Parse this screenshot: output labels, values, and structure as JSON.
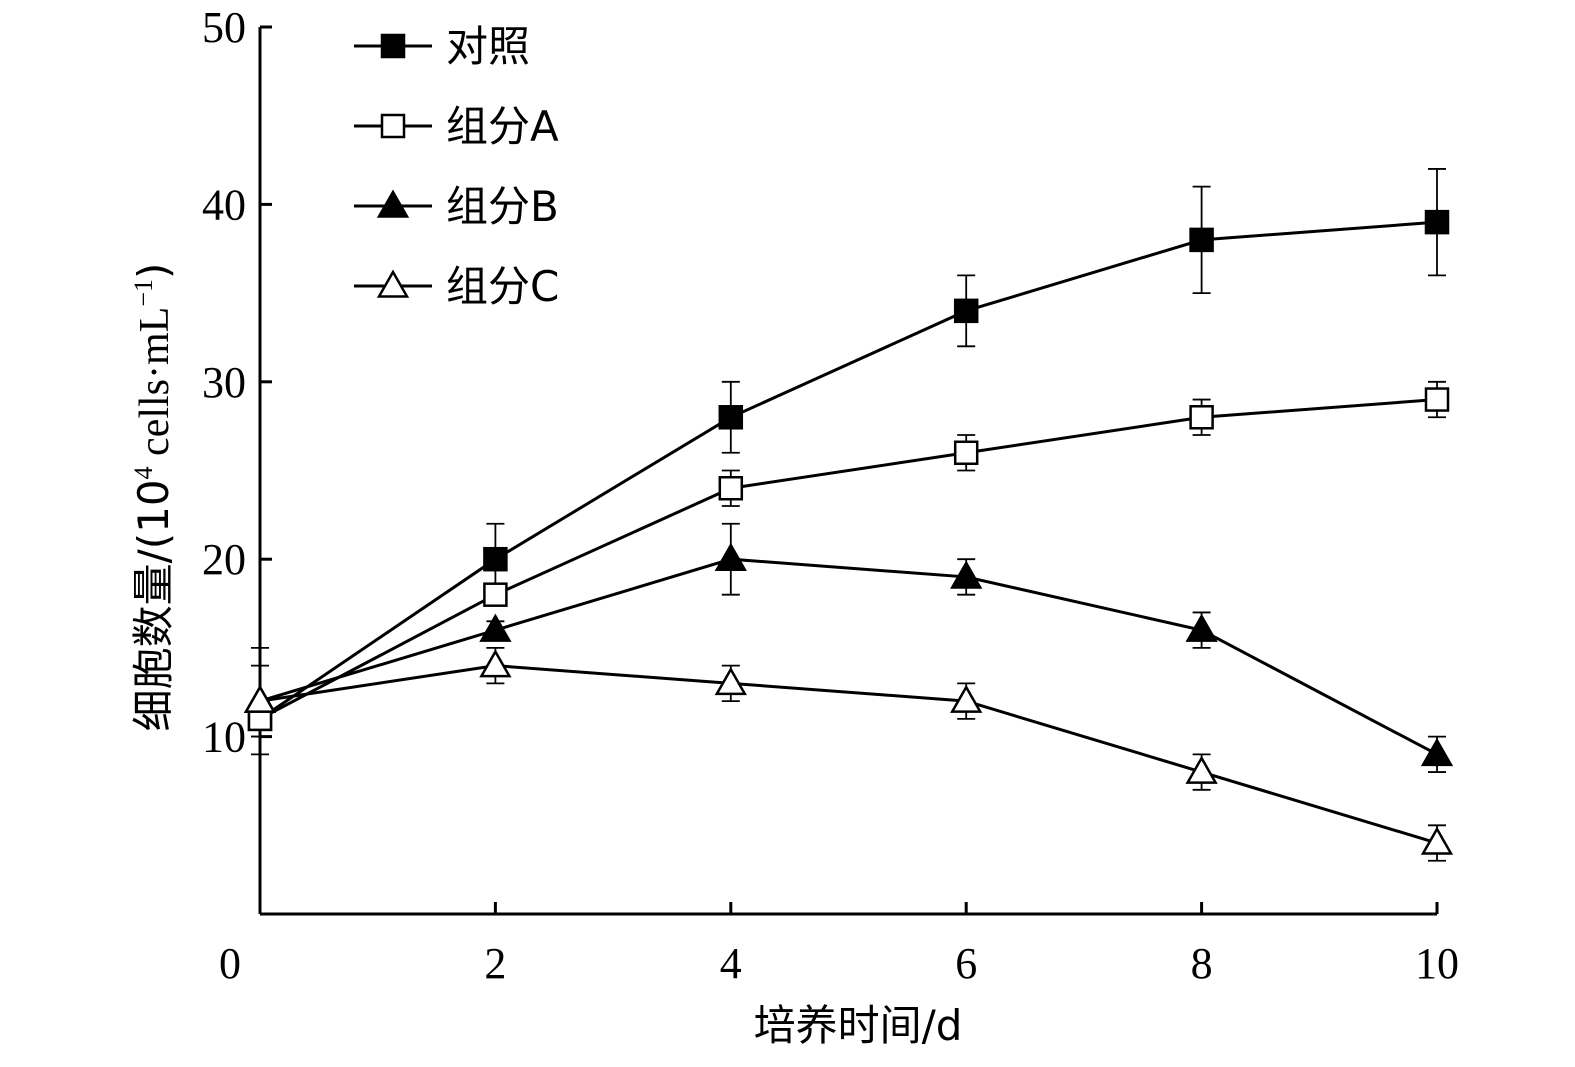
{
  "chart_data": {
    "type": "line",
    "title": "",
    "xlabel": "培养时间/d",
    "ylabel": {
      "prefix": "细胞数量/(10",
      "exponent": "4",
      "middle": " cells·mL",
      "unit_exponent": "−1",
      "suffix": ")"
    },
    "xlim": [
      0,
      10
    ],
    "ylim": [
      0,
      50
    ],
    "x_ticks": [
      0,
      2,
      4,
      6,
      8,
      10
    ],
    "y_ticks": [
      10,
      20,
      30,
      40,
      50
    ],
    "x": [
      0,
      2,
      4,
      6,
      8,
      10
    ],
    "grid": false,
    "legend": "top-left",
    "series": [
      {
        "name": "对照",
        "marker": "square-filled",
        "values": [
          11,
          20,
          28,
          34,
          38,
          39
        ],
        "errors": [
          1,
          2,
          2,
          2,
          3,
          3
        ]
      },
      {
        "name": "组分A",
        "marker": "square-open",
        "values": [
          11,
          18,
          24,
          26,
          28,
          29
        ],
        "errors": [
          1,
          0.5,
          1,
          1,
          1,
          1
        ]
      },
      {
        "name": "组分B",
        "marker": "triangle-filled",
        "values": [
          12,
          16,
          20,
          19,
          16,
          9
        ],
        "errors": [
          3,
          0.5,
          2,
          1,
          1,
          1
        ]
      },
      {
        "name": "组分C",
        "marker": "triangle-open",
        "values": [
          12,
          14,
          13,
          12,
          8,
          4
        ],
        "errors": [
          2,
          1,
          1,
          1,
          1,
          1
        ]
      }
    ]
  }
}
